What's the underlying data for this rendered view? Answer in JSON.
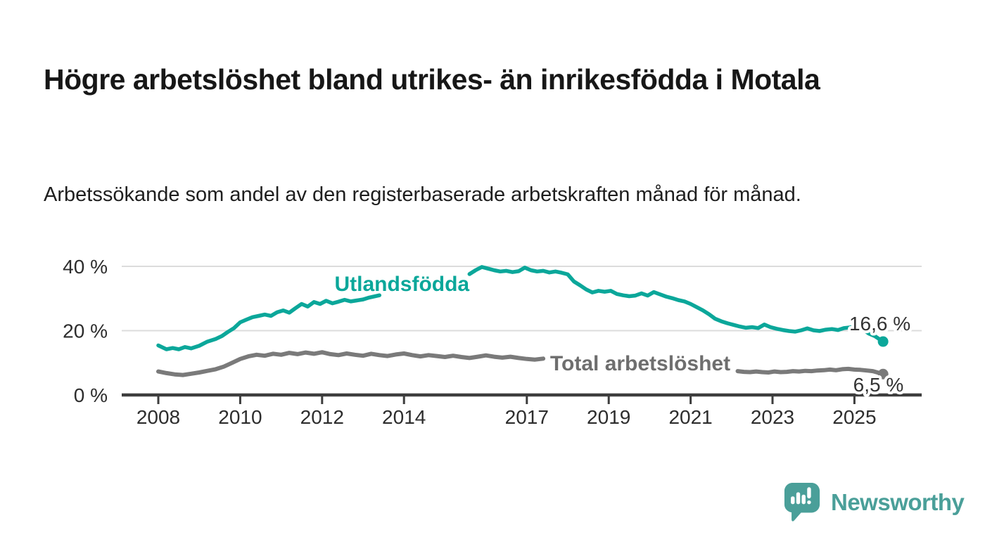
{
  "title": "Högre arbetslöshet bland utrikes- än inrikesfödda i Motala",
  "subtitle": "Arbetssökande som andel av den registerbaserade arbetskraften månad för månad.",
  "branding": {
    "logo_text": "Newsworthy",
    "logo_color": "#4a9f99",
    "logo_icon": "speech-bubble-bar-chart"
  },
  "chart_data": {
    "type": "line",
    "title": "",
    "xlabel": "",
    "ylabel": "",
    "x_unit": "year (monthly data)",
    "y_unit": "%",
    "xlim": [
      2007.05,
      2026.7
    ],
    "ylim": [
      0,
      44
    ],
    "grid": "horizontal",
    "x_ticks": [
      2008,
      2010,
      2012,
      2014,
      2017,
      2019,
      2021,
      2023,
      2025
    ],
    "x_tick_labels": [
      "2008",
      "2010",
      "2012",
      "2014",
      "2017",
      "2019",
      "2021",
      "2023",
      "2025"
    ],
    "y_ticks": [
      0,
      20,
      40
    ],
    "y_tick_labels": [
      "0 %",
      "20 %",
      "40 %"
    ],
    "axis_color": "#3d3d3d",
    "grid_color": "#dcdcdc",
    "tick_label_color": "#2d2d2d",
    "series": [
      {
        "name": "Total arbetslöshet",
        "color": "#7a7a7a",
        "label_color": "#6e6e6e",
        "stroke_width": 6,
        "end_value": 6.5,
        "end_label": "6,5 %",
        "end_label_pos": {
          "year": 2026.2,
          "value": 1.1
        },
        "label_pos": {
          "year": 2019.77,
          "value": 9.8
        },
        "segments": [
          [
            [
              2008.0,
              7.3
            ],
            [
              2008.2,
              6.8
            ],
            [
              2008.4,
              6.4
            ],
            [
              2008.6,
              6.2
            ],
            [
              2008.8,
              6.6
            ],
            [
              2009.0,
              7.0
            ],
            [
              2009.2,
              7.5
            ],
            [
              2009.4,
              8.0
            ],
            [
              2009.6,
              8.8
            ],
            [
              2009.8,
              10.0
            ],
            [
              2010.0,
              11.2
            ],
            [
              2010.2,
              12.0
            ],
            [
              2010.4,
              12.5
            ],
            [
              2010.6,
              12.2
            ],
            [
              2010.8,
              12.8
            ],
            [
              2011.0,
              12.5
            ],
            [
              2011.2,
              13.1
            ],
            [
              2011.4,
              12.7
            ],
            [
              2011.6,
              13.2
            ],
            [
              2011.8,
              12.8
            ],
            [
              2012.0,
              13.3
            ],
            [
              2012.2,
              12.7
            ],
            [
              2012.4,
              12.4
            ],
            [
              2012.6,
              12.9
            ],
            [
              2012.8,
              12.5
            ],
            [
              2013.0,
              12.2
            ],
            [
              2013.2,
              12.8
            ],
            [
              2013.4,
              12.4
            ],
            [
              2013.6,
              12.1
            ],
            [
              2013.8,
              12.6
            ],
            [
              2014.0,
              12.9
            ],
            [
              2014.2,
              12.4
            ],
            [
              2014.4,
              12.0
            ],
            [
              2014.6,
              12.4
            ],
            [
              2014.8,
              12.1
            ],
            [
              2015.0,
              11.8
            ],
            [
              2015.2,
              12.2
            ],
            [
              2015.4,
              11.8
            ],
            [
              2015.6,
              11.5
            ],
            [
              2015.8,
              11.9
            ],
            [
              2016.0,
              12.3
            ],
            [
              2016.2,
              11.9
            ],
            [
              2016.4,
              11.6
            ],
            [
              2016.6,
              11.9
            ],
            [
              2016.8,
              11.5
            ],
            [
              2017.0,
              11.2
            ],
            [
              2017.2,
              11.0
            ],
            [
              2017.4,
              11.3
            ]
          ],
          [
            [
              2022.15,
              7.4
            ],
            [
              2022.3,
              7.2
            ],
            [
              2022.45,
              7.1
            ],
            [
              2022.6,
              7.3
            ],
            [
              2022.75,
              7.1
            ],
            [
              2022.9,
              7.0
            ],
            [
              2023.05,
              7.3
            ],
            [
              2023.2,
              7.1
            ],
            [
              2023.35,
              7.2
            ],
            [
              2023.5,
              7.4
            ],
            [
              2023.65,
              7.3
            ],
            [
              2023.8,
              7.5
            ],
            [
              2023.95,
              7.4
            ],
            [
              2024.1,
              7.6
            ],
            [
              2024.25,
              7.7
            ],
            [
              2024.4,
              7.9
            ],
            [
              2024.55,
              7.7
            ],
            [
              2024.7,
              8.0
            ],
            [
              2024.85,
              8.1
            ],
            [
              2025.0,
              7.9
            ],
            [
              2025.15,
              7.8
            ],
            [
              2025.3,
              7.6
            ],
            [
              2025.45,
              7.4
            ],
            [
              2025.7,
              6.5
            ]
          ]
        ]
      },
      {
        "name": "Utlandsfödda",
        "color": "#0ba79a",
        "label_color": "#0ba79a",
        "stroke_width": 5.5,
        "end_value": 16.6,
        "end_label": "16,6 %",
        "end_label_pos": {
          "year": 2026.37,
          "value": 20.1
        },
        "label_pos": {
          "year": 2013.95,
          "value": 34.5
        },
        "segments": [
          [
            [
              2008.0,
              15.4
            ],
            [
              2008.2,
              14.2
            ],
            [
              2008.35,
              14.6
            ],
            [
              2008.5,
              14.2
            ],
            [
              2008.65,
              14.9
            ],
            [
              2008.8,
              14.5
            ],
            [
              2009.0,
              15.3
            ],
            [
              2009.2,
              16.6
            ],
            [
              2009.4,
              17.4
            ],
            [
              2009.55,
              18.3
            ],
            [
              2009.7,
              19.6
            ],
            [
              2009.85,
              20.8
            ],
            [
              2010.0,
              22.6
            ],
            [
              2010.15,
              23.4
            ],
            [
              2010.3,
              24.2
            ],
            [
              2010.45,
              24.6
            ],
            [
              2010.6,
              25.0
            ],
            [
              2010.75,
              24.6
            ],
            [
              2010.9,
              25.7
            ],
            [
              2011.05,
              26.3
            ],
            [
              2011.2,
              25.6
            ],
            [
              2011.35,
              27.0
            ],
            [
              2011.5,
              28.3
            ],
            [
              2011.65,
              27.5
            ],
            [
              2011.8,
              28.9
            ],
            [
              2011.95,
              28.3
            ],
            [
              2012.1,
              29.3
            ],
            [
              2012.25,
              28.5
            ],
            [
              2012.4,
              29.0
            ],
            [
              2012.55,
              29.6
            ],
            [
              2012.7,
              29.1
            ],
            [
              2012.85,
              29.4
            ],
            [
              2013.0,
              29.7
            ],
            [
              2013.15,
              30.3
            ],
            [
              2013.4,
              31.0
            ]
          ],
          [
            [
              2015.6,
              37.6
            ],
            [
              2015.75,
              38.8
            ],
            [
              2015.9,
              39.8
            ],
            [
              2016.05,
              39.3
            ],
            [
              2016.2,
              38.8
            ],
            [
              2016.35,
              38.4
            ],
            [
              2016.5,
              38.6
            ],
            [
              2016.65,
              38.2
            ],
            [
              2016.8,
              38.5
            ],
            [
              2016.95,
              39.6
            ],
            [
              2017.1,
              38.8
            ],
            [
              2017.25,
              38.4
            ],
            [
              2017.4,
              38.6
            ],
            [
              2017.55,
              38.1
            ],
            [
              2017.7,
              38.4
            ],
            [
              2017.85,
              38.0
            ],
            [
              2018.0,
              37.5
            ],
            [
              2018.15,
              35.3
            ],
            [
              2018.3,
              34.1
            ],
            [
              2018.45,
              32.8
            ],
            [
              2018.6,
              31.9
            ],
            [
              2018.75,
              32.4
            ],
            [
              2018.9,
              32.1
            ],
            [
              2019.05,
              32.4
            ],
            [
              2019.2,
              31.4
            ],
            [
              2019.35,
              31.0
            ],
            [
              2019.5,
              30.7
            ],
            [
              2019.65,
              30.9
            ],
            [
              2019.8,
              31.6
            ],
            [
              2019.95,
              30.9
            ],
            [
              2020.1,
              32.0
            ],
            [
              2020.25,
              31.3
            ],
            [
              2020.4,
              30.6
            ],
            [
              2020.55,
              30.1
            ],
            [
              2020.7,
              29.5
            ],
            [
              2020.85,
              29.1
            ],
            [
              2021.0,
              28.3
            ],
            [
              2021.15,
              27.3
            ],
            [
              2021.3,
              26.3
            ],
            [
              2021.45,
              25.1
            ],
            [
              2021.6,
              23.7
            ],
            [
              2021.75,
              22.9
            ],
            [
              2021.9,
              22.3
            ],
            [
              2022.05,
              21.8
            ],
            [
              2022.2,
              21.3
            ],
            [
              2022.35,
              20.9
            ],
            [
              2022.5,
              21.1
            ],
            [
              2022.65,
              20.8
            ],
            [
              2022.8,
              21.9
            ],
            [
              2022.95,
              21.1
            ],
            [
              2023.1,
              20.6
            ],
            [
              2023.25,
              20.2
            ],
            [
              2023.4,
              19.9
            ],
            [
              2023.55,
              19.7
            ],
            [
              2023.7,
              20.1
            ],
            [
              2023.85,
              20.7
            ],
            [
              2024.0,
              20.1
            ],
            [
              2024.15,
              19.9
            ],
            [
              2024.3,
              20.3
            ],
            [
              2024.45,
              20.5
            ],
            [
              2024.6,
              20.2
            ],
            [
              2024.75,
              20.8
            ],
            [
              2024.9,
              21.0
            ],
            [
              2025.05,
              21.4
            ],
            [
              2025.2,
              20.5
            ],
            [
              2025.35,
              19.1
            ],
            [
              2025.5,
              18.3
            ],
            [
              2025.7,
              16.6
            ]
          ]
        ]
      }
    ]
  }
}
